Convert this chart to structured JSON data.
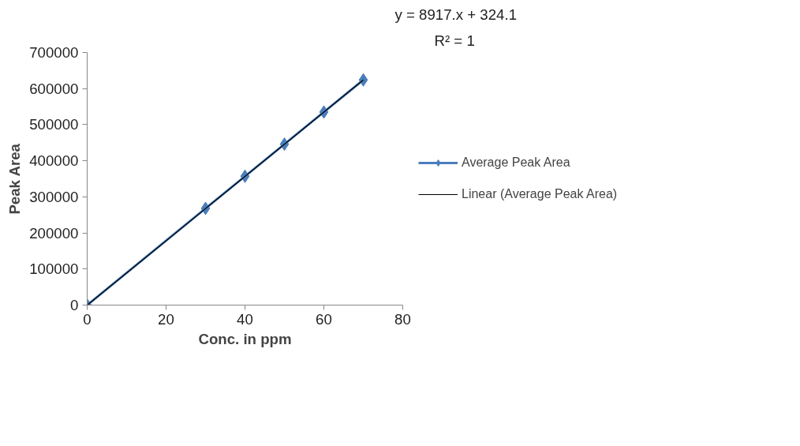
{
  "chart_data": {
    "type": "line",
    "xlabel": "Conc. in ppm",
    "ylabel": "Peak Area",
    "x": [
      0,
      30,
      40,
      50,
      60,
      70
    ],
    "series": [
      {
        "name": "Average Peak Area",
        "color": "#4a7ebb",
        "values": [
          0,
          268000,
          357000,
          446000,
          535000,
          624000
        ],
        "marker": "diamond",
        "line_style": "solid"
      },
      {
        "name": "Linear (Average Peak Area)",
        "type": "line",
        "color": "#000000",
        "x": [
          0,
          70
        ],
        "values": [
          0,
          624000
        ],
        "marker": "none",
        "line_style": "solid"
      }
    ],
    "annotations": [
      "y = 8917.x + 324.1",
      "R² = 1"
    ],
    "xlim": [
      0,
      80
    ],
    "xticks": [
      0,
      20,
      40,
      60,
      80
    ],
    "ylim": [
      0,
      700000
    ],
    "yticks": [
      0,
      100000,
      200000,
      300000,
      400000,
      500000,
      600000,
      700000
    ],
    "grid": false,
    "legend": "right"
  }
}
